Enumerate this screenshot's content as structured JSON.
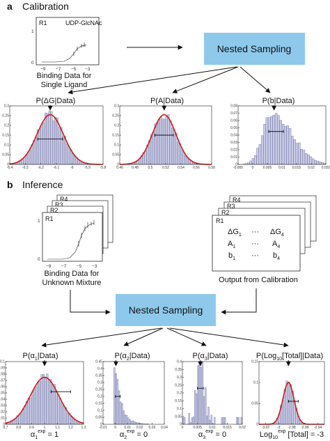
{
  "section_a": {
    "letter": "a",
    "title": "Calibration",
    "binding_box": {
      "replicate": "R1",
      "ligand": "UDP-GlcNAc",
      "x_ticks": [
        "−9",
        "−7",
        "−5",
        "−3"
      ],
      "y_ticks": [
        "1",
        "0"
      ],
      "caption_line1": "Binding Data for",
      "caption_line2": "Single Ligand"
    },
    "nested_sampling_label": "Nested Sampling"
  },
  "section_b": {
    "letter": "b",
    "title": "Inference",
    "binding_box": {
      "replicates": [
        "R4",
        "R3",
        "R2",
        "R1"
      ],
      "x_ticks": [
        "−9",
        "−7",
        "−5",
        "−3"
      ],
      "y_ticks": [
        "1",
        "0"
      ],
      "caption_line1": "Binding Data for",
      "caption_line2": "Unknown Mixture"
    },
    "calibration_box": {
      "replicates": [
        "R4",
        "R3",
        "R2",
        "R1"
      ],
      "params": [
        "ΔG",
        "A",
        "b"
      ],
      "index_first": "1",
      "index_last": "4",
      "ellipsis": "···",
      "caption": "Output from Calibration"
    },
    "nested_sampling_label": "Nested Sampling"
  },
  "colors": {
    "nested_box": "#8ec9ec",
    "bar_fill": "#c8cbe6",
    "fit_line": "#d01818"
  },
  "chart_data": [
    {
      "type": "bar",
      "id": "a1",
      "title": "P(ΔG|Data)",
      "x_ticks": [
        "-6.4",
        "-6.3",
        "-6.2",
        "-6.1",
        "-6",
        "-5.9",
        "-5.8"
      ],
      "xlim": [
        -6.4,
        -5.8
      ],
      "ylim": [
        0,
        0.3
      ],
      "y_ticks": [
        "0",
        "0.05",
        "0.1",
        "0.15",
        "0.2",
        "0.25",
        "0.3"
      ],
      "shape": "normal",
      "center": -6.14,
      "spread": 0.085,
      "peak": 0.255,
      "bins": 48,
      "fit_line": true,
      "error_bar": [
        -6.22,
        -6.06,
        0.13
      ],
      "marker": -6.14
    },
    {
      "type": "bar",
      "id": "a2",
      "title": "P(A|Data)",
      "x_ticks": [
        "0.46",
        "0.48",
        "0.5",
        "0.52",
        "0.54",
        "0.56",
        "0.58"
      ],
      "xlim": [
        0.46,
        0.58
      ],
      "ylim": [
        0,
        0.3
      ],
      "y_ticks": [
        "0",
        "0.05",
        "0.1",
        "0.15",
        "0.2",
        "0.25",
        "0.3"
      ],
      "shape": "normal",
      "center": 0.518,
      "spread": 0.0155,
      "peak": 0.255,
      "bins": 48,
      "fit_line": true,
      "error_bar": [
        0.506,
        0.53,
        0.15
      ],
      "marker": 0.518
    },
    {
      "type": "bar",
      "id": "a3",
      "title": "P(b|Data)",
      "x_ticks": [
        "-0.005",
        "0",
        "0.005",
        "0.01",
        "0.015",
        "0.02",
        "0.025"
      ],
      "xlim": [
        -0.005,
        0.025
      ],
      "ylim": [
        0,
        0.08
      ],
      "y_ticks": [
        "0",
        "0.01",
        "0.02",
        "0.03",
        "0.04",
        "0.05",
        "0.06",
        "0.07",
        "0.08"
      ],
      "shape": "skew",
      "center": 0.0065,
      "spread": 0.0045,
      "peak": 0.072,
      "bins": 38,
      "fit_line": false,
      "error_bar": [
        0.0055,
        0.0105,
        0.045
      ],
      "marker": 0.0073
    },
    {
      "type": "bar",
      "id": "b1",
      "title": "P(α",
      "title_sub": "1",
      "title_end": "|Data)",
      "x_ticks": [
        "0.7",
        "0.8",
        "0.9",
        "1",
        "1.1",
        "1.2",
        "1.3"
      ],
      "xlim": [
        0.7,
        1.3
      ],
      "ylim": [
        0,
        0.1
      ],
      "y_ticks": [
        "0",
        "0.01",
        "0.02",
        "0.03",
        "0.04",
        "0.05",
        "0.06",
        "0.07",
        "0.08",
        "0.09",
        "0.1"
      ],
      "shape": "normal",
      "center": 1.0,
      "spread": 0.11,
      "peak": 0.075,
      "bins": 42,
      "fit_line": true,
      "error_bar": [
        1.05,
        1.2,
        0.052
      ],
      "marker": 1.0,
      "caption_main": "α",
      "caption_sub": "1",
      "caption_sup": "exp",
      "caption_end": "= 1"
    },
    {
      "type": "bar",
      "id": "b2",
      "title": "P(α",
      "title_sub": "2",
      "title_end": "|Data)",
      "x_ticks": [
        "-0.01",
        "0",
        "0.01",
        "0.02",
        "0.03",
        "0.04"
      ],
      "xlim": [
        -0.01,
        0.04
      ],
      "ylim": [
        0,
        0.45
      ],
      "y_ticks": [
        "0",
        "0.05",
        "0.1",
        "0.15",
        "0.2",
        "0.25",
        "0.3",
        "0.35",
        "0.4",
        "0.45"
      ],
      "shape": "decay",
      "center": 0.0,
      "spread": 0.005,
      "peak": 0.38,
      "bins": 40,
      "fit_line": false,
      "error_bar": [
        0.0,
        0.004,
        0.2
      ],
      "marker": 0.0005,
      "caption_main": "α",
      "caption_sub": "2",
      "caption_sup": "exp",
      "caption_end": "= 0"
    },
    {
      "type": "bar",
      "id": "b3",
      "title": "P(α",
      "title_sub": "3",
      "title_end": "|Data)",
      "x_ticks": [
        "0",
        "0.005",
        "0.01",
        "0.015",
        "0.02"
      ],
      "xlim": [
        0,
        0.02
      ],
      "ylim": [
        0,
        0.4
      ],
      "y_ticks": [
        "0",
        "0.05",
        "0.1",
        "0.15",
        "0.2",
        "0.25",
        "0.3",
        "0.35",
        "0.4"
      ],
      "shape": "spiky",
      "center": 0.0058,
      "spread": 0.0015,
      "peak": 0.36,
      "bins": 40,
      "fit_line": false,
      "error_bar": [
        0.005,
        0.007,
        0.23
      ],
      "marker": 0.006,
      "caption_main": "α",
      "caption_sub": "3",
      "caption_sup": "exp",
      "caption_end": "= 0"
    },
    {
      "type": "bar",
      "id": "b4",
      "title": "P(Log",
      "title_sub": "10",
      "title_end": "[Total]|Data)",
      "x_ticks": [
        "-3.02",
        "-3",
        "-2.98",
        "-2.96",
        "-2.94"
      ],
      "xlim": [
        -3.03,
        -2.93
      ],
      "ylim": [
        0,
        0.15
      ],
      "y_ticks": [
        "0",
        "0.05",
        "0.1",
        "0.15"
      ],
      "shape": "normal",
      "center": -2.985,
      "spread": 0.0085,
      "peak": 0.1,
      "bins": 34,
      "fit_line": true,
      "error_bar": [
        -2.985,
        -2.97,
        0.055
      ],
      "marker": -2.985,
      "caption_main": "Log",
      "caption_sub": "10",
      "caption_sup": "exp",
      "caption_end": "[Total]     = -3"
    }
  ]
}
